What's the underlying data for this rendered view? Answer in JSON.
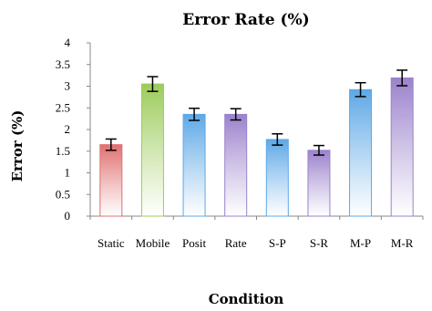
{
  "chart_data": {
    "type": "bar",
    "title": "Error Rate (%)",
    "xlabel": "Condition",
    "ylabel": "Error (%)",
    "ylim": [
      0,
      4
    ],
    "yticks": [
      "0",
      "0.5",
      "1",
      "1.5",
      "2",
      "2.5",
      "3",
      "3.5",
      "4"
    ],
    "yticks_values": [
      0,
      0.5,
      1,
      1.5,
      2,
      2.5,
      3,
      3.5,
      4
    ],
    "grid": false,
    "legend": "none",
    "categories": [
      "Static",
      "Mobile",
      "Posit",
      "Rate",
      "S-P",
      "S-R",
      "M-P",
      "M-R"
    ],
    "values": [
      1.65,
      3.05,
      2.35,
      2.35,
      1.77,
      1.52,
      2.92,
      3.19
    ],
    "errors": [
      0.13,
      0.17,
      0.14,
      0.13,
      0.13,
      0.11,
      0.16,
      0.18
    ],
    "colors": [
      "#e07070",
      "#9ccc5a",
      "#5ea8e6",
      "#9b82cc",
      "#5ea8e6",
      "#9b82cc",
      "#5ea8e6",
      "#9b82cc"
    ]
  }
}
